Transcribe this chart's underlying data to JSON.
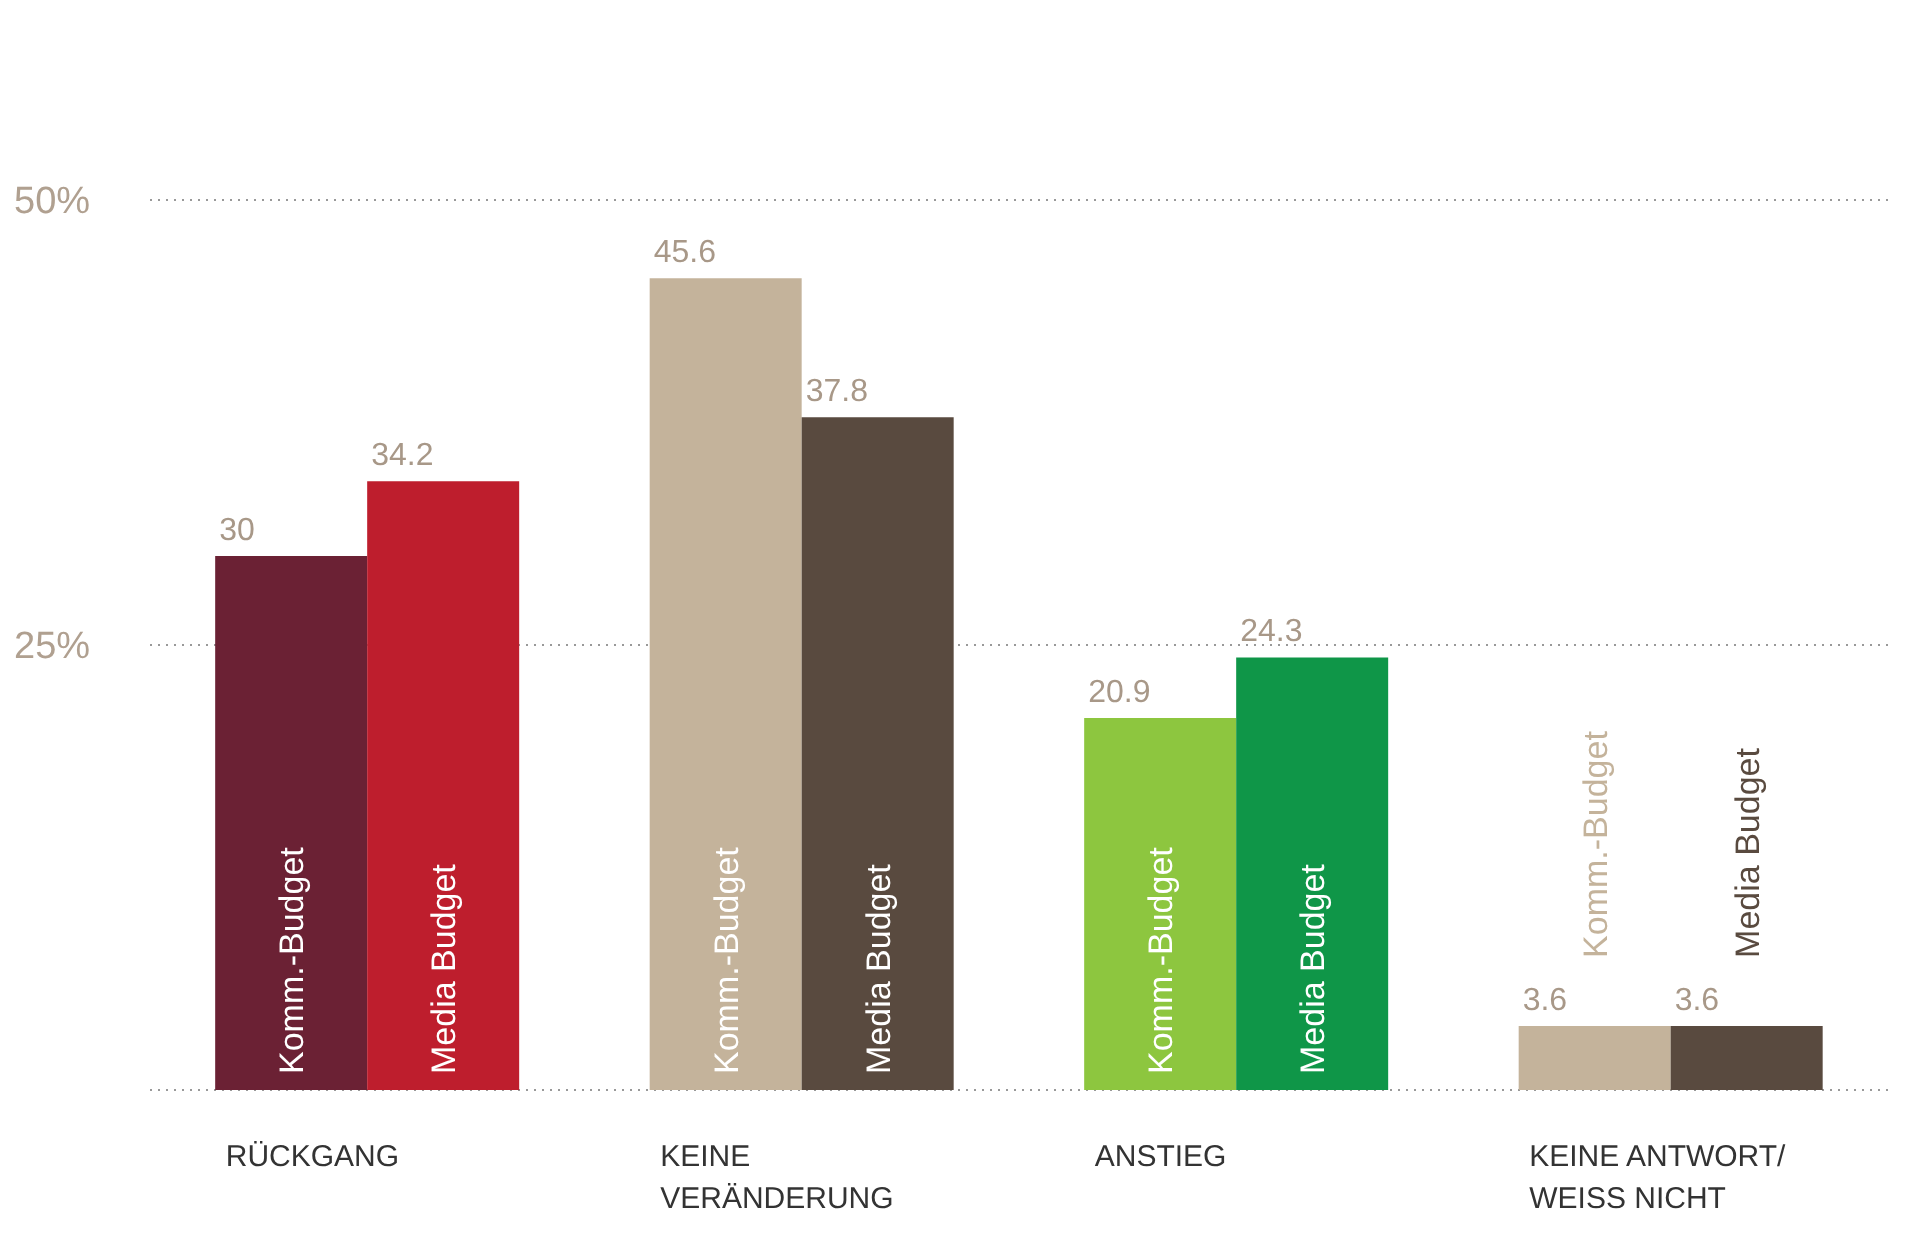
{
  "chart_data": {
    "type": "bar",
    "categories": [
      "RÜCKGANG",
      "KEINE VERÄNDERUNG",
      "ANSTIEG",
      "KEINE ANTWORT/ WEISS NICHT"
    ],
    "series": [
      {
        "name": "Komm.-Budget",
        "colors": [
          "#6b2134",
          "#c4b39b",
          "#8dc63f",
          "#c4b39b"
        ],
        "values": [
          30,
          45.6,
          20.9,
          3.6
        ]
      },
      {
        "name": "Media Budget",
        "colors": [
          "#be1e2d",
          "#594a3f",
          "#0f9648",
          "#594a3f"
        ],
        "values": [
          34.2,
          37.8,
          24.3,
          3.6
        ]
      }
    ],
    "ylim": [
      0,
      50
    ],
    "yticks": [
      {
        "value": 25,
        "label": "25%"
      },
      {
        "value": 50,
        "label": "50%"
      }
    ],
    "grid": "y",
    "data_labels": true
  }
}
